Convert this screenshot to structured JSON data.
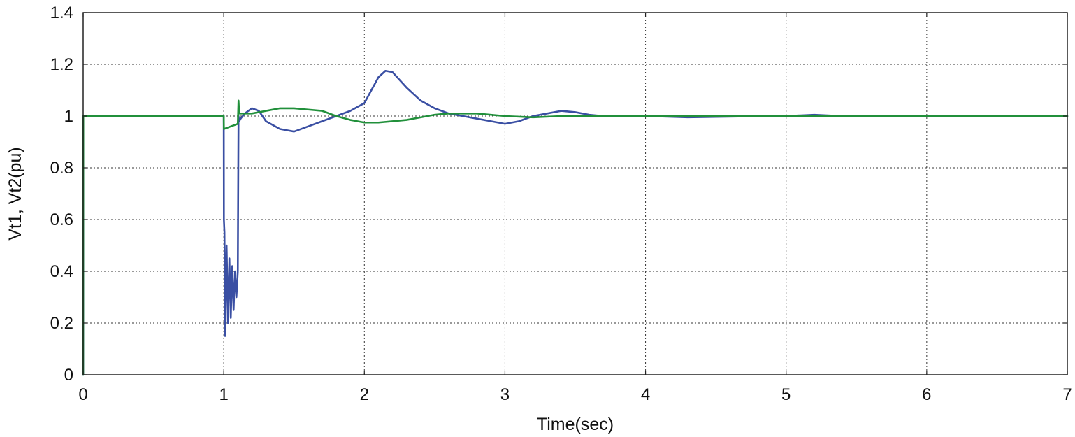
{
  "chart_data": {
    "type": "line",
    "title": "",
    "xlabel": "Time(sec)",
    "ylabel": "Vt1, Vt2(pu)",
    "xlim": [
      0,
      7
    ],
    "ylim": [
      0,
      1.4
    ],
    "x_ticks": [
      0,
      1,
      2,
      3,
      4,
      5,
      6,
      7
    ],
    "x_tick_labels": [
      "0",
      "1",
      "2",
      "3",
      "4",
      "5",
      "6",
      "7"
    ],
    "y_ticks": [
      0,
      0.2,
      0.4,
      0.6,
      0.8,
      1.0,
      1.2,
      1.4
    ],
    "y_tick_labels": [
      "0",
      "0.2",
      "0.4",
      "0.6",
      "0.8",
      "1",
      "1.2",
      "1.4"
    ],
    "grid": true,
    "legend": "none",
    "series": [
      {
        "color": "#3a4fa3",
        "x": [
          0,
          0.001,
          1.0,
          1.001,
          1.005,
          1.01,
          1.02,
          1.03,
          1.04,
          1.05,
          1.06,
          1.07,
          1.08,
          1.09,
          1.1,
          1.105,
          1.11,
          1.12,
          1.15,
          1.2,
          1.25,
          1.3,
          1.4,
          1.5,
          1.6,
          1.7,
          1.8,
          1.9,
          2.0,
          2.05,
          2.1,
          2.15,
          2.2,
          2.3,
          2.4,
          2.5,
          2.6,
          2.7,
          2.8,
          2.9,
          3.0,
          3.1,
          3.2,
          3.3,
          3.4,
          3.5,
          3.6,
          3.7,
          3.8,
          4.0,
          4.3,
          4.66,
          5.0,
          5.2,
          5.4,
          7.0
        ],
        "y": [
          0,
          1.0,
          1.0,
          0.6,
          0.55,
          0.15,
          0.5,
          0.2,
          0.45,
          0.22,
          0.42,
          0.25,
          0.4,
          0.3,
          0.4,
          1.0,
          0.98,
          0.99,
          1.01,
          1.03,
          1.02,
          0.98,
          0.95,
          0.94,
          0.96,
          0.98,
          1.0,
          1.02,
          1.05,
          1.1,
          1.15,
          1.175,
          1.17,
          1.11,
          1.06,
          1.03,
          1.01,
          1.0,
          0.99,
          0.98,
          0.97,
          0.98,
          1.0,
          1.01,
          1.02,
          1.015,
          1.005,
          1.0,
          1.0,
          1.0,
          0.995,
          0.998,
          1.0,
          1.005,
          1.0,
          1.0
        ]
      },
      {
        "color": "#21903b",
        "x": [
          0,
          0.001,
          1.0,
          1.001,
          1.05,
          1.1,
          1.105,
          1.11,
          1.2,
          1.3,
          1.4,
          1.5,
          1.6,
          1.7,
          1.8,
          1.9,
          2.0,
          2.1,
          2.2,
          2.3,
          2.4,
          2.5,
          2.6,
          2.8,
          3.0,
          3.2,
          3.4,
          3.6,
          4.0,
          7.0
        ],
        "y": [
          0,
          1.0,
          1.0,
          0.95,
          0.96,
          0.97,
          1.06,
          1.01,
          1.01,
          1.02,
          1.03,
          1.03,
          1.025,
          1.02,
          1.0,
          0.985,
          0.975,
          0.975,
          0.98,
          0.985,
          0.995,
          1.005,
          1.01,
          1.01,
          1.0,
          0.995,
          1.0,
          1.0,
          1.0,
          1.0
        ]
      }
    ]
  }
}
